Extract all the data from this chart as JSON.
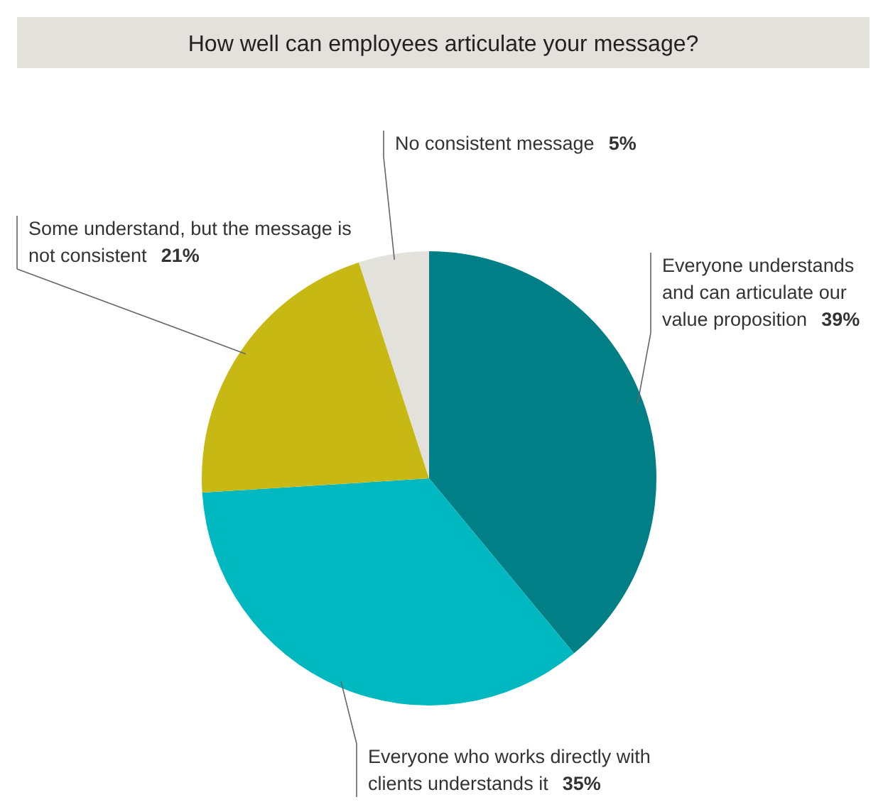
{
  "chart_data": {
    "type": "pie",
    "title": "How well can employees articulate your message?",
    "categories": [
      "Everyone understands and can articulate our value proposition",
      "Everyone who works directly with clients understands it",
      "Some understand, but the message is not consistent",
      "No consistent message"
    ],
    "values": [
      39,
      35,
      21,
      5
    ],
    "colors": [
      "#007f86",
      "#00b9c0",
      "#c8b814",
      "#e3e1dc"
    ],
    "value_labels": [
      "39%",
      "35%",
      "21%",
      "5%"
    ]
  }
}
